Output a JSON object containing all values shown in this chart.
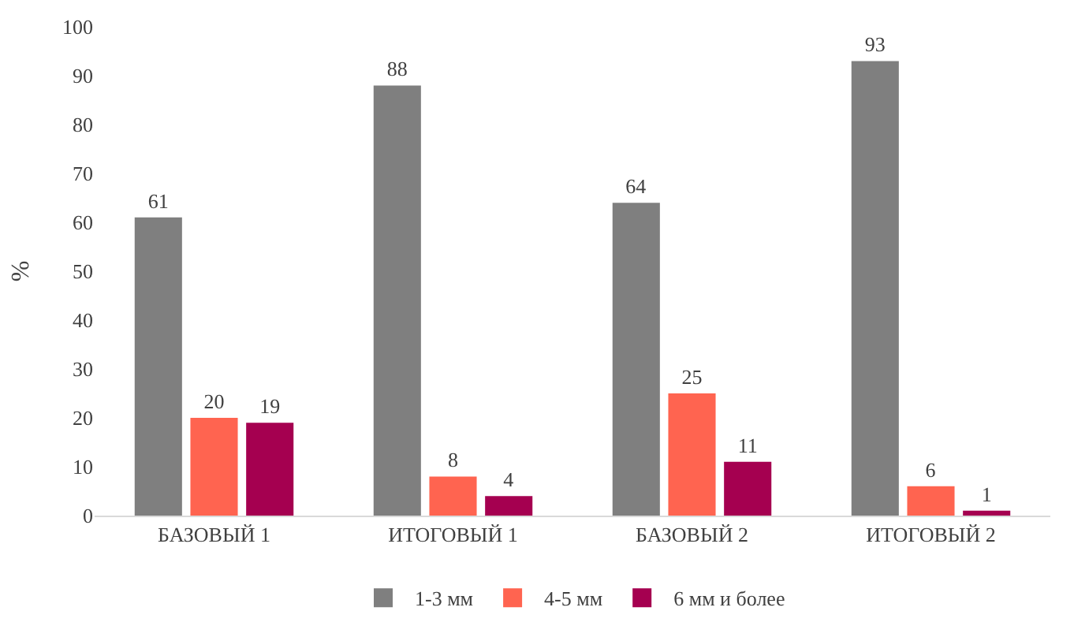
{
  "chart_data": {
    "type": "bar",
    "ylabel": "%",
    "categories": [
      "БАЗОВЫЙ 1",
      "ИТОГОВЫЙ 1",
      "БАЗОВЫЙ 2",
      "ИТОГОВЫЙ 2"
    ],
    "series": [
      {
        "name": "1-3 мм",
        "color": "#7f7f7f",
        "values": [
          61,
          88,
          64,
          93
        ]
      },
      {
        "name": "4-5 мм",
        "color": "#ff6450",
        "values": [
          20,
          8,
          25,
          6
        ]
      },
      {
        "name": "6 мм и более",
        "color": "#a50050",
        "values": [
          19,
          4,
          11,
          1
        ]
      }
    ],
    "ylim": [
      0,
      100
    ],
    "yticks": [
      0,
      10,
      20,
      30,
      40,
      50,
      60,
      70,
      80,
      90,
      100
    ],
    "grid": false,
    "legend": "bottom",
    "data_labels": true
  }
}
